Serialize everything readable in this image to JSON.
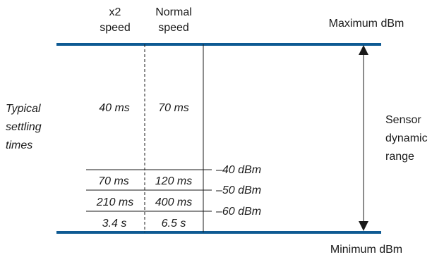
{
  "columns": {
    "x2": [
      "x2",
      "speed"
    ],
    "normal": [
      "Normal",
      "speed"
    ]
  },
  "bounds": {
    "max_label": "Maximum dBm",
    "min_label": "Minimum dBm"
  },
  "left_label": [
    "Typical",
    "settling",
    "times"
  ],
  "right_label": [
    "Sensor",
    "dynamic",
    "range"
  ],
  "top_row": {
    "x2": "40 ms",
    "normal": "70 ms"
  },
  "rows": [
    {
      "x2": "70 ms",
      "normal": "120 ms"
    },
    {
      "x2": "210 ms",
      "normal": "400 ms"
    },
    {
      "x2": "3.4 s",
      "normal": "6.5 s"
    }
  ],
  "thresholds": [
    "–40 dBm",
    "–50 dBm",
    "–60 dBm"
  ],
  "colors": {
    "band": "#0e5a93",
    "ink": "#1a1a1a"
  }
}
